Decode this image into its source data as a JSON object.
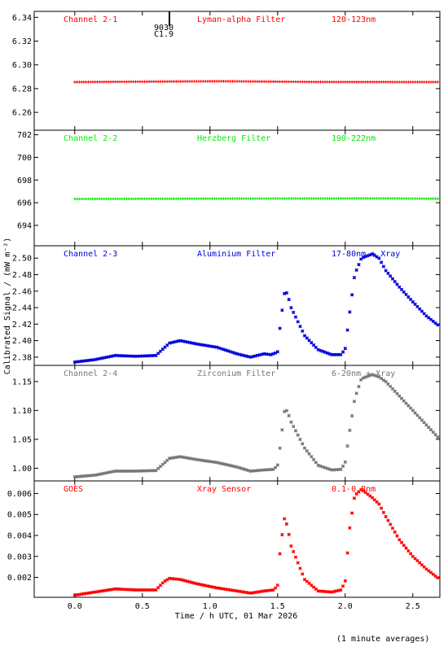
{
  "footer_note": "(1 minute averages)",
  "event_marker": {
    "label_top": "9030",
    "label_bottom": "C1.9",
    "time": 0.7
  },
  "chart_data": [
    {
      "type": "scatter",
      "panel": "channel-2-1",
      "channel_label": "Channel 2-1",
      "filter_label": "Lyman-alpha Filter",
      "band_label": "120-123nm",
      "color": "#ff0000",
      "marker": "plus",
      "ylim": [
        6.245,
        6.345
      ],
      "yticks": [
        6.26,
        6.28,
        6.3,
        6.32,
        6.34
      ],
      "ytick_labels": [
        "6.26",
        "6.28",
        "6.30",
        "6.32",
        "6.34"
      ],
      "curve": [
        [
          0,
          6.2855
        ],
        [
          0.7,
          6.286
        ],
        [
          1.1,
          6.2862
        ],
        [
          1.8,
          6.2856
        ],
        [
          2.7,
          6.2855
        ]
      ]
    },
    {
      "type": "scatter",
      "panel": "channel-2-2",
      "channel_label": "Channel 2-2",
      "filter_label": "Herzberg Filter",
      "band_label": "190-222nm",
      "color": "#00ee00",
      "marker": "plus",
      "ylim": [
        692.2,
        702.4
      ],
      "yticks": [
        694,
        696,
        698,
        700,
        702
      ],
      "ytick_labels": [
        "694",
        "696",
        "698",
        "700",
        "702"
      ],
      "curve": [
        [
          0,
          696.33
        ],
        [
          1.0,
          696.36
        ],
        [
          2.3,
          696.38
        ],
        [
          2.7,
          696.35
        ]
      ]
    },
    {
      "type": "scatter",
      "panel": "channel-2-3",
      "channel_label": "Channel 2-3",
      "filter_label": "Aluminium Filter",
      "band_label": "17-80nm + Xray",
      "color": "#0000dd",
      "marker": "star",
      "ylim": [
        2.37,
        2.515
      ],
      "yticks": [
        2.38,
        2.4,
        2.42,
        2.44,
        2.46,
        2.48,
        2.5
      ],
      "ytick_labels": [
        "2.38",
        "2.40",
        "2.42",
        "2.44",
        "2.46",
        "2.48",
        "2.50"
      ],
      "curve": [
        [
          0,
          2.374
        ],
        [
          0.15,
          2.377
        ],
        [
          0.3,
          2.382
        ],
        [
          0.45,
          2.381
        ],
        [
          0.6,
          2.382
        ],
        [
          0.7,
          2.397
        ],
        [
          0.78,
          2.4
        ],
        [
          0.9,
          2.396
        ],
        [
          1.05,
          2.392
        ],
        [
          1.2,
          2.384
        ],
        [
          1.3,
          2.38
        ],
        [
          1.4,
          2.384
        ],
        [
          1.45,
          2.383
        ],
        [
          1.5,
          2.386
        ],
        [
          1.52,
          2.42
        ],
        [
          1.55,
          2.457
        ],
        [
          1.57,
          2.458
        ],
        [
          1.6,
          2.44
        ],
        [
          1.7,
          2.406
        ],
        [
          1.8,
          2.389
        ],
        [
          1.9,
          2.383
        ],
        [
          1.97,
          2.383
        ],
        [
          2.0,
          2.39
        ],
        [
          2.03,
          2.43
        ],
        [
          2.07,
          2.48
        ],
        [
          2.12,
          2.5
        ],
        [
          2.2,
          2.505
        ],
        [
          2.25,
          2.5
        ],
        [
          2.3,
          2.485
        ],
        [
          2.4,
          2.465
        ],
        [
          2.5,
          2.447
        ],
        [
          2.6,
          2.43
        ],
        [
          2.7,
          2.417
        ]
      ]
    },
    {
      "type": "scatter",
      "panel": "channel-2-4",
      "channel_label": "Channel 2-4",
      "filter_label": "Zirconium Filter",
      "band_label": "6-20nm + Xray",
      "color": "#777777",
      "marker": "star",
      "ylim": [
        0.978,
        1.178
      ],
      "yticks": [
        1.0,
        1.05,
        1.1,
        1.15
      ],
      "ytick_labels": [
        "1.00",
        "1.05",
        "1.10",
        "1.15"
      ],
      "curve": [
        [
          0,
          0.985
        ],
        [
          0.15,
          0.988
        ],
        [
          0.3,
          0.995
        ],
        [
          0.45,
          0.995
        ],
        [
          0.6,
          0.996
        ],
        [
          0.7,
          1.017
        ],
        [
          0.78,
          1.02
        ],
        [
          0.9,
          1.015
        ],
        [
          1.05,
          1.01
        ],
        [
          1.2,
          1.002
        ],
        [
          1.3,
          0.995
        ],
        [
          1.4,
          0.997
        ],
        [
          1.47,
          0.998
        ],
        [
          1.5,
          1.005
        ],
        [
          1.52,
          1.04
        ],
        [
          1.55,
          1.098
        ],
        [
          1.57,
          1.1
        ],
        [
          1.6,
          1.08
        ],
        [
          1.7,
          1.035
        ],
        [
          1.8,
          1.005
        ],
        [
          1.9,
          0.997
        ],
        [
          1.97,
          0.998
        ],
        [
          2.0,
          1.01
        ],
        [
          2.03,
          1.06
        ],
        [
          2.07,
          1.12
        ],
        [
          2.12,
          1.155
        ],
        [
          2.2,
          1.162
        ],
        [
          2.25,
          1.158
        ],
        [
          2.3,
          1.15
        ],
        [
          2.4,
          1.125
        ],
        [
          2.5,
          1.1
        ],
        [
          2.6,
          1.075
        ],
        [
          2.7,
          1.05
        ]
      ]
    },
    {
      "type": "scatter",
      "panel": "goes",
      "channel_label": "GOES",
      "filter_label": "Xray Sensor",
      "band_label": "0.1-0.8nm",
      "color": "#ff0000",
      "marker": "star",
      "ylim": [
        0.00105,
        0.0066
      ],
      "yticks": [
        0.002,
        0.003,
        0.004,
        0.005,
        0.006
      ],
      "ytick_labels": [
        "0.002",
        "0.003",
        "0.004",
        "0.005",
        "0.006"
      ],
      "curve": [
        [
          0,
          0.00115
        ],
        [
          0.15,
          0.0013
        ],
        [
          0.3,
          0.00145
        ],
        [
          0.45,
          0.0014
        ],
        [
          0.6,
          0.0014
        ],
        [
          0.66,
          0.0018
        ],
        [
          0.7,
          0.00195
        ],
        [
          0.78,
          0.0019
        ],
        [
          0.9,
          0.0017
        ],
        [
          1.05,
          0.0015
        ],
        [
          1.2,
          0.00135
        ],
        [
          1.3,
          0.00125
        ],
        [
          1.4,
          0.00135
        ],
        [
          1.47,
          0.0014
        ],
        [
          1.5,
          0.0016
        ],
        [
          1.52,
          0.0034
        ],
        [
          1.55,
          0.0048
        ],
        [
          1.57,
          0.0045
        ],
        [
          1.6,
          0.0035
        ],
        [
          1.7,
          0.0019
        ],
        [
          1.8,
          0.00135
        ],
        [
          1.9,
          0.0013
        ],
        [
          1.97,
          0.0014
        ],
        [
          2.0,
          0.0018
        ],
        [
          2.03,
          0.0042
        ],
        [
          2.07,
          0.0059
        ],
        [
          2.12,
          0.0062
        ],
        [
          2.2,
          0.0058
        ],
        [
          2.25,
          0.0055
        ],
        [
          2.3,
          0.0049
        ],
        [
          2.4,
          0.0038
        ],
        [
          2.5,
          0.003
        ],
        [
          2.6,
          0.0024
        ],
        [
          2.7,
          0.0019
        ]
      ]
    }
  ],
  "x_axis": {
    "xlabel": "Time / h UTC, 01 Mar 2026",
    "xlim": [
      -0.3,
      2.7
    ],
    "ticks": [
      0,
      0.5,
      1,
      1.5,
      2,
      2.5
    ],
    "tick_labels": [
      "0.0",
      "0.5",
      "1.0",
      "1.5",
      "2.0",
      "2.5"
    ],
    "data_start": 0.0,
    "data_end": 2.7,
    "sample_step": 0.01667
  },
  "y_axis": {
    "ylabel": "Calibrated Signal / (mW m⁻²)"
  }
}
